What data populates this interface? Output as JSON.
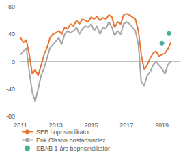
{
  "chart_data": {
    "type": "line",
    "x": [
      2011.0,
      2011.17,
      2011.33,
      2011.5,
      2011.67,
      2011.83,
      2012.0,
      2012.17,
      2012.33,
      2012.5,
      2012.67,
      2012.83,
      2013.0,
      2013.17,
      2013.33,
      2013.5,
      2013.67,
      2013.83,
      2014.0,
      2014.17,
      2014.33,
      2014.5,
      2014.67,
      2014.83,
      2015.0,
      2015.17,
      2015.33,
      2015.5,
      2015.67,
      2015.83,
      2016.0,
      2016.17,
      2016.33,
      2016.5,
      2016.67,
      2016.83,
      2017.0,
      2017.17,
      2017.33,
      2017.5,
      2017.67,
      2017.83,
      2018.0,
      2018.17,
      2018.33,
      2018.5,
      2018.67,
      2018.83,
      2019.0,
      2019.17,
      2019.33,
      2019.5
    ],
    "series": [
      {
        "name": "SEB boprisindikator",
        "color": "#e8742e",
        "line_style": "solid",
        "values": [
          35,
          28,
          32,
          10,
          -18,
          -12,
          -20,
          -5,
          10,
          20,
          35,
          40,
          42,
          45,
          40,
          50,
          48,
          55,
          52,
          60,
          55,
          62,
          60,
          58,
          65,
          62,
          66,
          60,
          64,
          62,
          68,
          65,
          50,
          58,
          55,
          68,
          70,
          68,
          65,
          62,
          45,
          10,
          -12,
          -5,
          5,
          12,
          15,
          8,
          10,
          12,
          18,
          28
        ]
      },
      {
        "name": "Erik Olsson bostadsindex",
        "color": "#a6a6a6",
        "line_style": "solid",
        "values": [
          10,
          15,
          20,
          -15,
          -45,
          -58,
          -40,
          -20,
          -10,
          5,
          20,
          25,
          30,
          35,
          25,
          40,
          45,
          42,
          45,
          50,
          40,
          48,
          52,
          50,
          55,
          45,
          52,
          40,
          50,
          48,
          58,
          50,
          38,
          45,
          40,
          55,
          58,
          55,
          50,
          45,
          25,
          -30,
          -35,
          -20,
          -15,
          -5,
          0,
          -5,
          -10,
          -18,
          -5,
          0
        ]
      },
      {
        "name": "SBAB 1-års boprisindikator",
        "color": "#179c7d",
        "type": "scatter",
        "marker": "circle",
        "x": [
          2019.0,
          2019.4
        ],
        "values": [
          27,
          41
        ]
      }
    ],
    "xlim": [
      2011,
      2020
    ],
    "xticks": [
      2011,
      2013,
      2015,
      2017,
      2019
    ],
    "ylim": [
      -80,
      80
    ],
    "yticks": [
      -80,
      -40,
      0,
      40,
      80
    ],
    "grid": false,
    "legend": "bottom"
  }
}
